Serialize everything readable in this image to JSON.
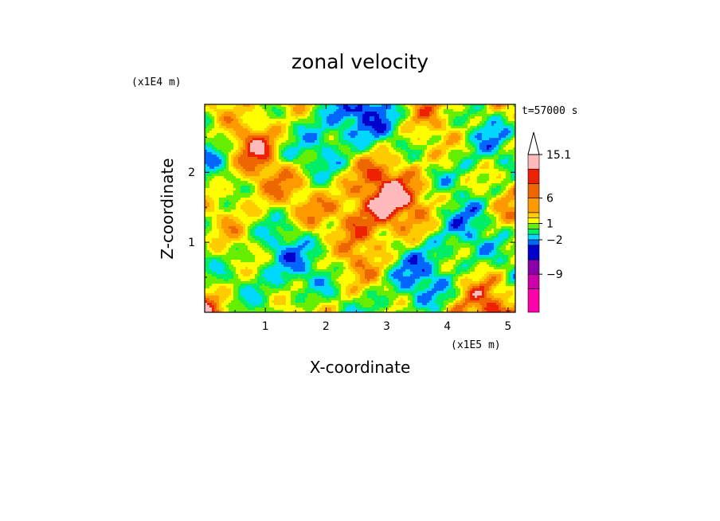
{
  "chart_data": {
    "type": "heatmap",
    "title": "zonal velocity",
    "xlabel": "X-coordinate",
    "ylabel": "Z-coordinate",
    "x_multiplier": "(x1E5 m)",
    "y_multiplier": "(x1E4 m)",
    "time_label": "t=57000 s",
    "xlim": [
      0,
      5.12
    ],
    "ylim": [
      0,
      2.97
    ],
    "x_ticks": [
      "1",
      "2",
      "3",
      "4",
      "5"
    ],
    "y_ticks": [
      "1",
      "2"
    ],
    "colorbar": {
      "levels": [
        -15,
        -12,
        -9,
        -6,
        -3,
        -2,
        -1,
        0,
        1,
        2,
        3,
        6,
        9,
        12,
        15.1
      ],
      "labels": [
        "15.1",
        "6",
        "1",
        "−2",
        "−9"
      ],
      "colors": [
        "#ff00aa",
        "#cc00aa",
        "#8800aa",
        "#0000cc",
        "#0066ff",
        "#00d8ff",
        "#00ee66",
        "#66ee00",
        "#ffff00",
        "#ffcc00",
        "#ff9900",
        "#ee6600",
        "#ee2200",
        "#ffbbbb"
      ],
      "overflow_triangle_top": true
    }
  }
}
